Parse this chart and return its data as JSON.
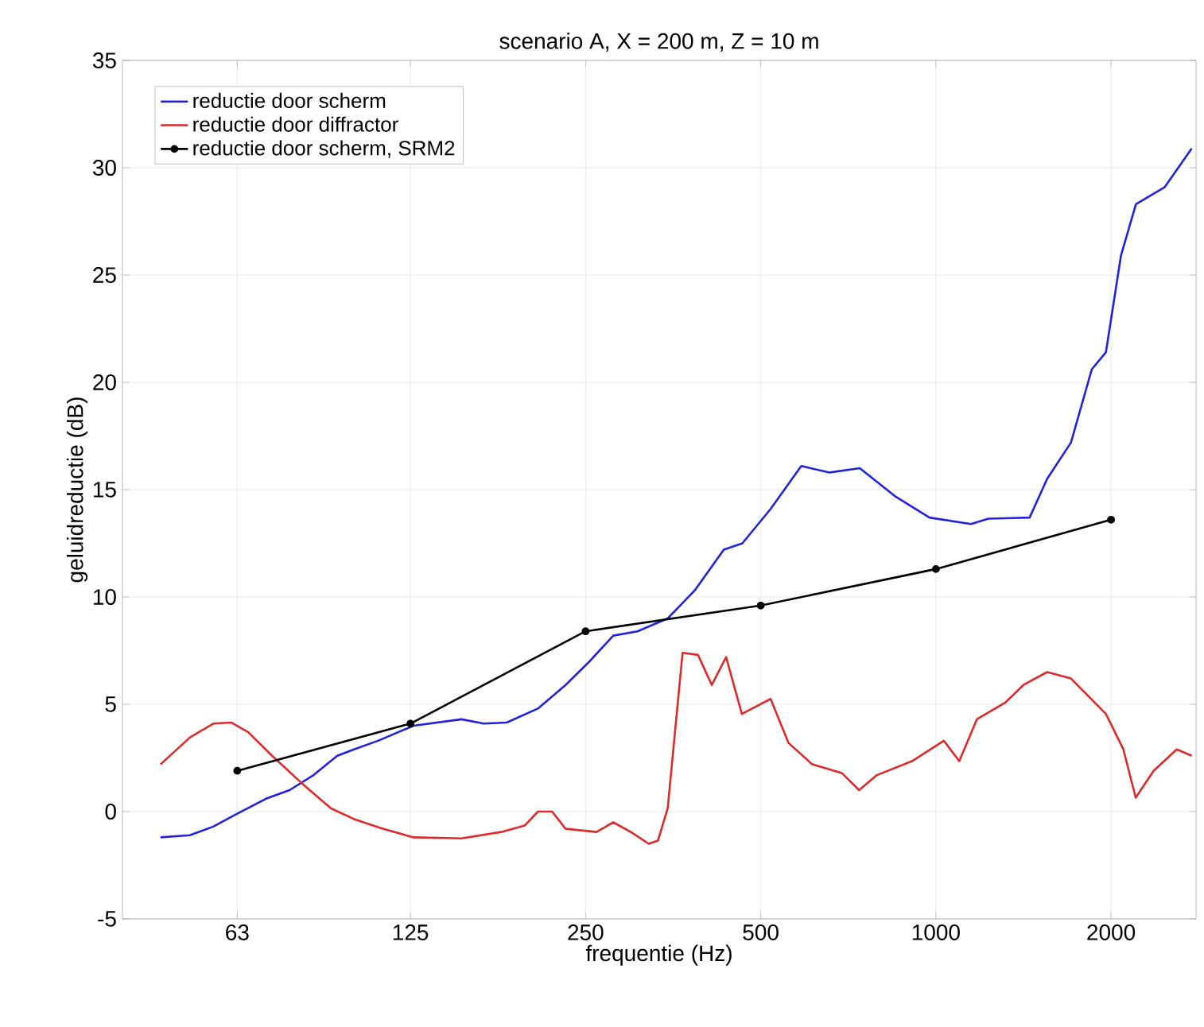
{
  "chart_data": {
    "type": "line",
    "title": "scenario A, X = 200 m, Z = 10 m",
    "xlabel": "frequentie (Hz)",
    "ylabel": "geluidreductie (dB)",
    "log": "x",
    "xlim": [
      40,
      2800
    ],
    "ylim": [
      -5,
      35
    ],
    "xticks": [
      63,
      125,
      250,
      500,
      1000,
      2000
    ],
    "yticks": [
      -5,
      0,
      5,
      10,
      15,
      20,
      25,
      30,
      35
    ],
    "grid": true,
    "legend": "top left",
    "series": [
      {
        "name": "reductie door scherm",
        "color": "#2222dd",
        "marker": "none",
        "x": [
          46.5,
          52.2,
          57.3,
          63,
          70.6,
          77.5,
          85.2,
          93.6,
          100,
          110,
          126.5,
          153,
          167,
          183,
          207,
          231,
          254,
          279,
          307,
          346,
          385,
          432,
          465,
          520,
          587,
          657,
          740,
          850,
          975,
          1149,
          1231,
          1449,
          1553,
          1707,
          1853,
          1960,
          2080,
          2207,
          2474,
          2752
        ],
        "values": [
          -1.2,
          -1.1,
          -0.7,
          -0.1,
          0.6,
          1.0,
          1.7,
          2.6,
          2.9,
          3.3,
          4.0,
          4.3,
          4.1,
          4.15,
          4.8,
          5.9,
          7.0,
          8.2,
          8.4,
          9.0,
          10.3,
          12.2,
          12.5,
          14.1,
          16.1,
          15.8,
          16.0,
          14.7,
          13.7,
          13.4,
          13.65,
          13.7,
          15.5,
          17.2,
          20.6,
          21.4,
          25.9,
          28.3,
          29.1,
          30.9
        ]
      },
      {
        "name": "reductie door diffractor",
        "color": "#dd2a2a",
        "marker": "none",
        "x": [
          46.5,
          52.2,
          57.3,
          61.5,
          65.8,
          72.3,
          81.5,
          91.3,
          100,
          112,
          126.5,
          153,
          179,
          196.5,
          207,
          219,
          231,
          261,
          279,
          299,
          321,
          333,
          346,
          367,
          390,
          412,
          436,
          464,
          520,
          558,
          613,
          689,
          738,
          792,
          910,
          1032,
          1097,
          1176,
          1319,
          1414,
          1553,
          1707,
          1960,
          2100,
          2205,
          2367,
          2594,
          2752
        ],
        "values": [
          2.2,
          3.45,
          4.1,
          4.15,
          3.7,
          2.6,
          1.3,
          0.15,
          -0.35,
          -0.8,
          -1.2,
          -1.25,
          -0.95,
          -0.65,
          0.0,
          0.0,
          -0.8,
          -0.95,
          -0.5,
          -0.95,
          -1.5,
          -1.35,
          0.15,
          7.4,
          7.3,
          5.9,
          7.2,
          4.55,
          5.25,
          3.2,
          2.2,
          1.8,
          1.0,
          1.7,
          2.35,
          3.3,
          2.35,
          4.3,
          5.1,
          5.9,
          6.5,
          6.2,
          4.55,
          2.9,
          0.65,
          1.9,
          2.9,
          2.6
        ]
      },
      {
        "name": "reductie door scherm, SRM2",
        "color": "#000000",
        "marker": "circle",
        "x": [
          63,
          125,
          250,
          500,
          1000,
          2000
        ],
        "values": [
          1.9,
          4.1,
          8.4,
          9.6,
          11.3,
          13.6
        ]
      }
    ]
  }
}
